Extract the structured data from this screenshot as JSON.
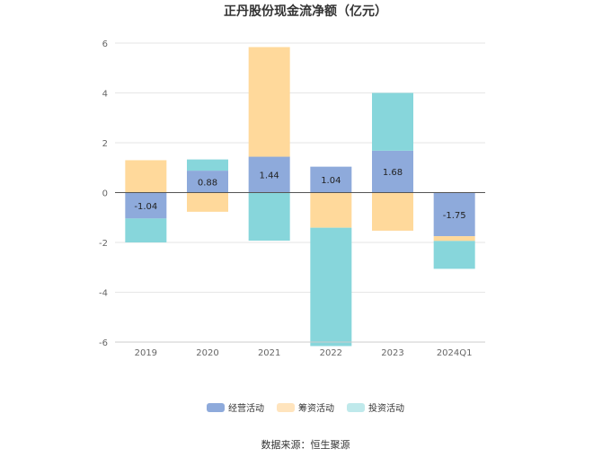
{
  "chart_data": {
    "type": "bar",
    "stacked": true,
    "title": "正丹股份现金流净额（亿元）",
    "categories": [
      "2019",
      "2020",
      "2021",
      "2022",
      "2023",
      "2024Q1"
    ],
    "series": [
      {
        "name": "经营活动",
        "color": "#8eaadb",
        "values": [
          -1.04,
          0.88,
          1.44,
          1.04,
          1.68,
          -1.75
        ],
        "labels": [
          "-1.04",
          "0.88",
          "1.44",
          "1.04",
          "1.68",
          "-1.75"
        ]
      },
      {
        "name": "筹资活动",
        "color": "#ffd99b",
        "values": [
          1.3,
          -0.77,
          4.4,
          -1.41,
          -1.53,
          -0.19
        ]
      },
      {
        "name": "投资活动",
        "color": "#87d6db",
        "values": [
          -0.96,
          0.45,
          -1.93,
          -4.75,
          2.32,
          -1.12
        ]
      }
    ],
    "ylim": [
      -6,
      6
    ],
    "yticks": [
      "6",
      "4",
      "2",
      "0",
      "-2",
      "-4",
      "-6"
    ],
    "grid": true,
    "legend_position": "bottom"
  },
  "source": "数据来源：恒生聚源"
}
